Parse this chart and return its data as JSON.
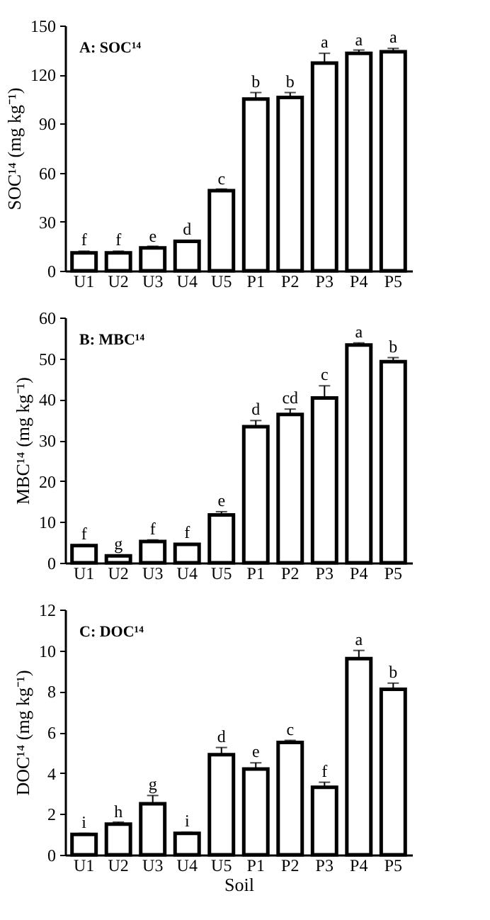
{
  "chart_data": [
    {
      "type": "bar",
      "title": "A: SOC¹⁴",
      "ylabel": "SOC¹⁴ (mg kg⁻¹)",
      "categories": [
        "U1",
        "U2",
        "U3",
        "U4",
        "U5",
        "P1",
        "P2",
        "P3",
        "P4",
        "P5"
      ],
      "series": [
        {
          "color": "#ffffff",
          "values": [
            11,
            11,
            14,
            18,
            49,
            105,
            106,
            127,
            133,
            134
          ],
          "errors": [
            1,
            1,
            1,
            0.5,
            1,
            4,
            3,
            6,
            2,
            2
          ]
        }
      ],
      "ylim": [
        0,
        150
      ],
      "yticks": [
        0,
        30,
        60,
        90,
        120,
        150
      ],
      "annotations": [
        {
          "text": "f",
          "x": "U1",
          "y": 12
        },
        {
          "text": "f",
          "x": "U2",
          "y": 12
        },
        {
          "text": "e",
          "x": "U3",
          "y": 14.5
        },
        {
          "text": "d",
          "x": "U4",
          "y": 18.5
        },
        {
          "text": "c",
          "x": "U5",
          "y": 49.5
        },
        {
          "text": "b",
          "x": "P1",
          "y": 109
        },
        {
          "text": "b",
          "x": "P2",
          "y": 109
        },
        {
          "text": "a",
          "x": "P3",
          "y": 133
        },
        {
          "text": "a",
          "x": "P4",
          "y": 134.5
        },
        {
          "text": "a",
          "x": "P5",
          "y": 136
        }
      ]
    },
    {
      "type": "bar",
      "title": "B: MBC¹⁴",
      "ylabel": "MBC¹⁴ (mg kg⁻¹)",
      "categories": [
        "U1",
        "U2",
        "U3",
        "U4",
        "U5",
        "P1",
        "P2",
        "P3",
        "P4",
        "P5"
      ],
      "series": [
        {
          "color": "#ffffff",
          "values": [
            4.2,
            1.7,
            5.2,
            4.5,
            11.7,
            33.3,
            36.3,
            40.3,
            53.3,
            49.2
          ],
          "errors": [
            0.2,
            0.2,
            0.4,
            0.2,
            0.8,
            1.5,
            1.3,
            3,
            0.5,
            1
          ]
        }
      ],
      "ylim": [
        0,
        60
      ],
      "yticks": [
        0,
        10,
        20,
        30,
        40,
        50,
        60
      ],
      "annotations": [
        {
          "text": "f",
          "x": "U1",
          "y": 4.4
        },
        {
          "text": "g",
          "x": "U2",
          "y": 1.9
        },
        {
          "text": "f",
          "x": "U3",
          "y": 5.6
        },
        {
          "text": "f",
          "x": "U4",
          "y": 4.7
        },
        {
          "text": "e",
          "x": "U5",
          "y": 12.5
        },
        {
          "text": "d",
          "x": "P1",
          "y": 34.8
        },
        {
          "text": "cd",
          "x": "P2",
          "y": 37.6
        },
        {
          "text": "c",
          "x": "P3",
          "y": 43.3
        },
        {
          "text": "a",
          "x": "P4",
          "y": 53.8
        },
        {
          "text": "b",
          "x": "P5",
          "y": 50.2
        }
      ]
    },
    {
      "type": "bar",
      "title": "C: DOC¹⁴",
      "xlabel": "Soil",
      "ylabel": "DOC¹⁴ (mg kg⁻¹)",
      "categories": [
        "U1",
        "U2",
        "U3",
        "U4",
        "U5",
        "P1",
        "P2",
        "P3",
        "P4",
        "P5"
      ],
      "series": [
        {
          "color": "#ffffff",
          "values": [
            1.0,
            1.5,
            2.5,
            1.05,
            4.9,
            4.2,
            5.5,
            3.3,
            9.6,
            8.1
          ],
          "errors": [
            0.05,
            0.1,
            0.4,
            0.05,
            0.35,
            0.3,
            0.1,
            0.25,
            0.4,
            0.3
          ]
        }
      ],
      "ylim": [
        0,
        12
      ],
      "yticks": [
        0,
        2,
        4,
        6,
        8,
        10,
        12
      ],
      "annotations": [
        {
          "text": "i",
          "x": "U1",
          "y": 1.05
        },
        {
          "text": "h",
          "x": "U2",
          "y": 1.55
        },
        {
          "text": "g",
          "x": "U3",
          "y": 2.9
        },
        {
          "text": "i",
          "x": "U4",
          "y": 1.1
        },
        {
          "text": "d",
          "x": "U5",
          "y": 5.25
        },
        {
          "text": "e",
          "x": "P1",
          "y": 4.5
        },
        {
          "text": "c",
          "x": "P2",
          "y": 5.6
        },
        {
          "text": "f",
          "x": "P3",
          "y": 3.55
        },
        {
          "text": "a",
          "x": "P4",
          "y": 10
        },
        {
          "text": "b",
          "x": "P5",
          "y": 8.4
        }
      ]
    }
  ]
}
